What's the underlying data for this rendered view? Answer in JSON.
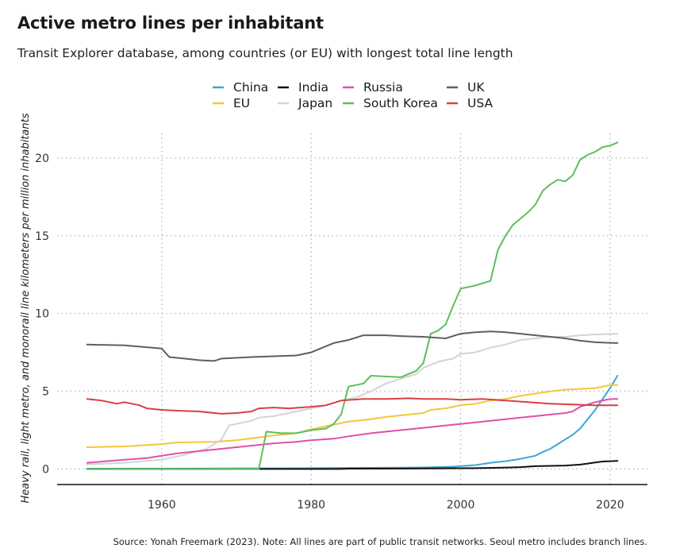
{
  "chart_data": {
    "type": "line",
    "title": "Active metro lines per inhabitant",
    "subtitle": "Transit Explorer database, among countries (or EU) with longest total line length",
    "ylabel": "Heavy rail, light metro, and monorail line kilometers per million inhabitants",
    "xlabel": "",
    "source": "Source: Yonah Freemark (2023). Note: All lines are part of public transit networks. Seoul metro includes branch lines.",
    "xlim": [
      1946,
      2025
    ],
    "ylim": [
      -1,
      22.5
    ],
    "x_ticks": [
      1960,
      1980,
      2000,
      2020
    ],
    "y_ticks": [
      0,
      5,
      10,
      15,
      20
    ],
    "grid": true,
    "legend_position": "top",
    "series": [
      {
        "name": "China",
        "color": "#3ba7d4",
        "points": [
          [
            1950,
            0.02
          ],
          [
            1970,
            0.03
          ],
          [
            1980,
            0.05
          ],
          [
            1990,
            0.08
          ],
          [
            1995,
            0.1
          ],
          [
            1999,
            0.15
          ],
          [
            2002,
            0.25
          ],
          [
            2004,
            0.4
          ],
          [
            2006,
            0.5
          ],
          [
            2008,
            0.65
          ],
          [
            2009,
            0.75
          ],
          [
            2010,
            0.85
          ],
          [
            2011,
            1.1
          ],
          [
            2012,
            1.3
          ],
          [
            2013,
            1.6
          ],
          [
            2014,
            1.9
          ],
          [
            2015,
            2.2
          ],
          [
            2016,
            2.6
          ],
          [
            2017,
            3.2
          ],
          [
            2018,
            3.8
          ],
          [
            2019,
            4.5
          ],
          [
            2020,
            5.2
          ],
          [
            2021,
            6.0
          ]
        ]
      },
      {
        "name": "EU",
        "color": "#f2c73c",
        "points": [
          [
            1950,
            1.4
          ],
          [
            1955,
            1.45
          ],
          [
            1960,
            1.6
          ],
          [
            1962,
            1.7
          ],
          [
            1967,
            1.75
          ],
          [
            1970,
            1.85
          ],
          [
            1975,
            2.15
          ],
          [
            1978,
            2.3
          ],
          [
            1980,
            2.55
          ],
          [
            1983,
            2.85
          ],
          [
            1985,
            3.05
          ],
          [
            1988,
            3.2
          ],
          [
            1990,
            3.35
          ],
          [
            1993,
            3.5
          ],
          [
            1995,
            3.6
          ],
          [
            1996,
            3.8
          ],
          [
            1998,
            3.9
          ],
          [
            2000,
            4.1
          ],
          [
            2002,
            4.2
          ],
          [
            2004,
            4.4
          ],
          [
            2006,
            4.5
          ],
          [
            2008,
            4.7
          ],
          [
            2010,
            4.85
          ],
          [
            2012,
            5.0
          ],
          [
            2014,
            5.1
          ],
          [
            2016,
            5.15
          ],
          [
            2018,
            5.2
          ],
          [
            2020,
            5.4
          ],
          [
            2021,
            5.4
          ]
        ]
      },
      {
        "name": "India",
        "color": "#111111",
        "points": [
          [
            1950,
            0.0
          ],
          [
            1984,
            0.0
          ],
          [
            1985,
            0.02
          ],
          [
            1995,
            0.03
          ],
          [
            2002,
            0.05
          ],
          [
            2005,
            0.08
          ],
          [
            2008,
            0.12
          ],
          [
            2010,
            0.18
          ],
          [
            2012,
            0.2
          ],
          [
            2014,
            0.22
          ],
          [
            2016,
            0.28
          ],
          [
            2017,
            0.35
          ],
          [
            2018,
            0.42
          ],
          [
            2019,
            0.48
          ],
          [
            2021,
            0.52
          ]
        ]
      },
      {
        "name": "Japan",
        "color": "#d4d4d4",
        "points": [
          [
            1950,
            0.3
          ],
          [
            1955,
            0.4
          ],
          [
            1960,
            0.6
          ],
          [
            1963,
            0.9
          ],
          [
            1966,
            1.3
          ],
          [
            1967,
            1.6
          ],
          [
            1968,
            1.9
          ],
          [
            1969,
            2.8
          ],
          [
            1970,
            2.9
          ],
          [
            1972,
            3.1
          ],
          [
            1973,
            3.3
          ],
          [
            1975,
            3.4
          ],
          [
            1977,
            3.6
          ],
          [
            1979,
            3.8
          ],
          [
            1980,
            3.9
          ],
          [
            1982,
            4.1
          ],
          [
            1984,
            4.4
          ],
          [
            1986,
            4.6
          ],
          [
            1988,
            5.0
          ],
          [
            1990,
            5.5
          ],
          [
            1992,
            5.8
          ],
          [
            1994,
            6.1
          ],
          [
            1995,
            6.5
          ],
          [
            1997,
            6.9
          ],
          [
            1999,
            7.1
          ],
          [
            2000,
            7.4
          ],
          [
            2002,
            7.5
          ],
          [
            2004,
            7.8
          ],
          [
            2006,
            8.0
          ],
          [
            2008,
            8.3
          ],
          [
            2010,
            8.4
          ],
          [
            2012,
            8.5
          ],
          [
            2014,
            8.5
          ],
          [
            2016,
            8.6
          ],
          [
            2018,
            8.65
          ],
          [
            2021,
            8.7
          ]
        ]
      },
      {
        "name": "Russia",
        "color": "#e050a8",
        "points": [
          [
            1950,
            0.4
          ],
          [
            1955,
            0.6
          ],
          [
            1958,
            0.7
          ],
          [
            1960,
            0.85
          ],
          [
            1962,
            1.0
          ],
          [
            1965,
            1.15
          ],
          [
            1968,
            1.3
          ],
          [
            1970,
            1.4
          ],
          [
            1973,
            1.55
          ],
          [
            1975,
            1.65
          ],
          [
            1978,
            1.75
          ],
          [
            1980,
            1.85
          ],
          [
            1983,
            1.95
          ],
          [
            1985,
            2.1
          ],
          [
            1988,
            2.3
          ],
          [
            1990,
            2.4
          ],
          [
            1992,
            2.5
          ],
          [
            1995,
            2.65
          ],
          [
            1998,
            2.8
          ],
          [
            2000,
            2.9
          ],
          [
            2002,
            3.0
          ],
          [
            2005,
            3.15
          ],
          [
            2008,
            3.3
          ],
          [
            2010,
            3.4
          ],
          [
            2012,
            3.5
          ],
          [
            2014,
            3.6
          ],
          [
            2015,
            3.7
          ],
          [
            2016,
            4.0
          ],
          [
            2018,
            4.3
          ],
          [
            2020,
            4.5
          ],
          [
            2021,
            4.5
          ]
        ]
      },
      {
        "name": "South Korea",
        "color": "#5cbf5c",
        "points": [
          [
            1950,
            0.0
          ],
          [
            1973,
            0.0
          ],
          [
            1974,
            2.4
          ],
          [
            1976,
            2.3
          ],
          [
            1978,
            2.3
          ],
          [
            1980,
            2.5
          ],
          [
            1982,
            2.6
          ],
          [
            1983,
            2.9
          ],
          [
            1984,
            3.5
          ],
          [
            1985,
            5.3
          ],
          [
            1987,
            5.5
          ],
          [
            1988,
            6.0
          ],
          [
            1990,
            5.95
          ],
          [
            1992,
            5.9
          ],
          [
            1994,
            6.3
          ],
          [
            1995,
            6.8
          ],
          [
            1996,
            8.7
          ],
          [
            1997,
            8.9
          ],
          [
            1998,
            9.3
          ],
          [
            1999,
            10.5
          ],
          [
            2000,
            11.6
          ],
          [
            2002,
            11.8
          ],
          [
            2004,
            12.1
          ],
          [
            2005,
            14.1
          ],
          [
            2006,
            15.0
          ],
          [
            2007,
            15.7
          ],
          [
            2009,
            16.5
          ],
          [
            2010,
            17.0
          ],
          [
            2011,
            17.9
          ],
          [
            2012,
            18.3
          ],
          [
            2013,
            18.6
          ],
          [
            2014,
            18.5
          ],
          [
            2015,
            18.9
          ],
          [
            2016,
            19.9
          ],
          [
            2017,
            20.2
          ],
          [
            2018,
            20.4
          ],
          [
            2019,
            20.7
          ],
          [
            2020,
            20.8
          ],
          [
            2021,
            21.0
          ]
        ]
      },
      {
        "name": "UK",
        "color": "#5f5f5f",
        "points": [
          [
            1950,
            8.0
          ],
          [
            1955,
            7.95
          ],
          [
            1960,
            7.75
          ],
          [
            1961,
            7.2
          ],
          [
            1963,
            7.1
          ],
          [
            1965,
            7.0
          ],
          [
            1967,
            6.95
          ],
          [
            1968,
            7.1
          ],
          [
            1970,
            7.15
          ],
          [
            1972,
            7.2
          ],
          [
            1975,
            7.25
          ],
          [
            1978,
            7.3
          ],
          [
            1980,
            7.5
          ],
          [
            1981,
            7.7
          ],
          [
            1982,
            7.9
          ],
          [
            1983,
            8.1
          ],
          [
            1985,
            8.3
          ],
          [
            1987,
            8.6
          ],
          [
            1990,
            8.6
          ],
          [
            1992,
            8.55
          ],
          [
            1995,
            8.5
          ],
          [
            1998,
            8.4
          ],
          [
            2000,
            8.7
          ],
          [
            2002,
            8.8
          ],
          [
            2004,
            8.85
          ],
          [
            2006,
            8.8
          ],
          [
            2008,
            8.7
          ],
          [
            2010,
            8.6
          ],
          [
            2012,
            8.5
          ],
          [
            2014,
            8.4
          ],
          [
            2016,
            8.25
          ],
          [
            2018,
            8.15
          ],
          [
            2021,
            8.1
          ]
        ]
      },
      {
        "name": "USA",
        "color": "#d94040",
        "points": [
          [
            1950,
            4.5
          ],
          [
            1952,
            4.4
          ],
          [
            1954,
            4.2
          ],
          [
            1955,
            4.3
          ],
          [
            1957,
            4.1
          ],
          [
            1958,
            3.9
          ],
          [
            1960,
            3.8
          ],
          [
            1962,
            3.75
          ],
          [
            1965,
            3.7
          ],
          [
            1968,
            3.55
          ],
          [
            1970,
            3.6
          ],
          [
            1972,
            3.7
          ],
          [
            1973,
            3.9
          ],
          [
            1975,
            3.95
          ],
          [
            1977,
            3.9
          ],
          [
            1980,
            4.0
          ],
          [
            1982,
            4.1
          ],
          [
            1984,
            4.4
          ],
          [
            1987,
            4.5
          ],
          [
            1990,
            4.5
          ],
          [
            1993,
            4.55
          ],
          [
            1995,
            4.5
          ],
          [
            1998,
            4.5
          ],
          [
            2000,
            4.45
          ],
          [
            2003,
            4.5
          ],
          [
            2006,
            4.4
          ],
          [
            2009,
            4.3
          ],
          [
            2012,
            4.2
          ],
          [
            2015,
            4.15
          ],
          [
            2018,
            4.1
          ],
          [
            2021,
            4.1
          ]
        ]
      }
    ],
    "legend_order": [
      "China",
      "India",
      "Russia",
      "UK",
      "EU",
      "Japan",
      "South Korea",
      "USA"
    ]
  }
}
